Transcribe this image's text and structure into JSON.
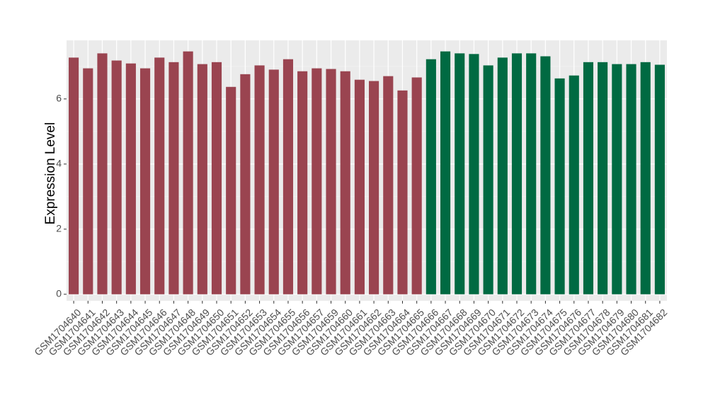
{
  "chart_data": {
    "type": "bar",
    "y_label": "Expression Level",
    "categories": [
      "GSM1704640",
      "GSM1704641",
      "GSM1704642",
      "GSM1704643",
      "GSM1704644",
      "GSM1704645",
      "GSM1704646",
      "GSM1704647",
      "GSM1704648",
      "GSM1704649",
      "GSM1704650",
      "GSM1704651",
      "GSM1704652",
      "GSM1704653",
      "GSM1704654",
      "GSM1704655",
      "GSM1704656",
      "GSM1704657",
      "GSM1704659",
      "GSM1704660",
      "GSM1704661",
      "GSM1704662",
      "GSM1704663",
      "GSM1704664",
      "GSM1704665",
      "GSM1704666",
      "GSM1704667",
      "GSM1704668",
      "GSM1704669",
      "GSM1704670",
      "GSM1704671",
      "GSM1704672",
      "GSM1704673",
      "GSM1704674",
      "GSM1704675",
      "GSM1704676",
      "GSM1704677",
      "GSM1704678",
      "GSM1704679",
      "GSM1704680",
      "GSM1704681",
      "GSM1704682"
    ],
    "values": [
      7.27,
      6.94,
      7.4,
      7.18,
      7.09,
      6.94,
      7.27,
      7.13,
      7.46,
      7.07,
      7.13,
      6.37,
      6.76,
      7.03,
      6.9,
      7.22,
      6.85,
      6.94,
      6.92,
      6.85,
      6.59,
      6.55,
      6.7,
      6.26,
      6.66,
      7.22,
      7.46,
      7.4,
      7.38,
      7.03,
      7.27,
      7.4,
      7.4,
      7.31,
      6.63,
      6.72,
      7.13,
      7.13,
      7.07,
      7.07,
      7.13,
      7.05
    ],
    "bar_colors": [
      "#9a4450",
      "#9a4450",
      "#9a4450",
      "#9a4450",
      "#9a4450",
      "#9a4450",
      "#9a4450",
      "#9a4450",
      "#9a4450",
      "#9a4450",
      "#9a4450",
      "#9a4450",
      "#9a4450",
      "#9a4450",
      "#9a4450",
      "#9a4450",
      "#9a4450",
      "#9a4450",
      "#9a4450",
      "#9a4450",
      "#9a4450",
      "#9a4450",
      "#9a4450",
      "#9a4450",
      "#9a4450",
      "#006a42",
      "#006a42",
      "#006a42",
      "#006a42",
      "#006a42",
      "#006a42",
      "#006a42",
      "#006a42",
      "#006a42",
      "#006a42",
      "#006a42",
      "#006a42",
      "#006a42",
      "#006a42",
      "#006a42",
      "#006a42",
      "#006a42"
    ],
    "ylim": [
      -0.2,
      7.8
    ],
    "yticks": [
      0,
      2,
      4,
      6
    ],
    "y_minor_grid": [
      1,
      3,
      5,
      7
    ],
    "grid": true
  }
}
